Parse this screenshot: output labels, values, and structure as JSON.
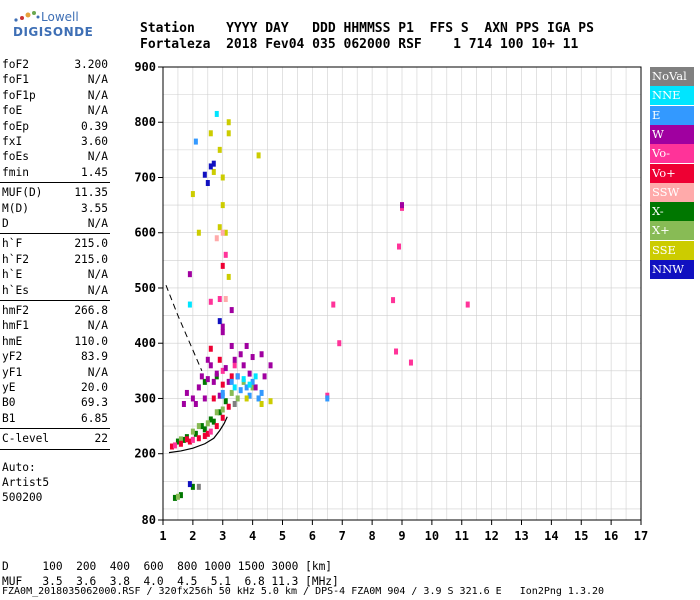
{
  "logo": {
    "line1": "Lowell",
    "line2": "DIGISONDE"
  },
  "header": {
    "line1": "Station    YYYY DAY   DDD HHMMSS P1  FFS S  AXN PPS IGA PS",
    "line2": "Fortaleza  2018 Fev04 035 062000 RSF    1 714 100 10+ 11"
  },
  "params": [
    {
      "key": "foF2",
      "value": "3.200"
    },
    {
      "key": "foF1",
      "value": "N/A"
    },
    {
      "key": "foF1p",
      "value": "N/A"
    },
    {
      "key": "foE",
      "value": "N/A"
    },
    {
      "key": "foEp",
      "value": "0.39"
    },
    {
      "key": "fxI",
      "value": "3.60"
    },
    {
      "key": "foEs",
      "value": "N/A"
    },
    {
      "key": "fmin",
      "value": "1.45"
    },
    {
      "key": "MUF(D)",
      "value": "11.35"
    },
    {
      "key": "M(D)",
      "value": "3.55"
    },
    {
      "key": "D",
      "value": "N/A"
    },
    {
      "key": "h`F",
      "value": "215.0"
    },
    {
      "key": "h`F2",
      "value": "215.0"
    },
    {
      "key": "h`E",
      "value": "N/A"
    },
    {
      "key": "h`Es",
      "value": "N/A"
    },
    {
      "key": "hmF2",
      "value": "266.8"
    },
    {
      "key": "hmF1",
      "value": "N/A"
    },
    {
      "key": "hmE",
      "value": "110.0"
    },
    {
      "key": "yF2",
      "value": "83.9"
    },
    {
      "key": "yF1",
      "value": "N/A"
    },
    {
      "key": "yE",
      "value": "20.0"
    },
    {
      "key": "B0",
      "value": "69.3"
    },
    {
      "key": "B1",
      "value": "6.85"
    },
    {
      "key": "C-level",
      "value": "22"
    }
  ],
  "auto": {
    "line1": "Auto:",
    "line2": "Artist5",
    "line3": "500200"
  },
  "legend": [
    {
      "label": "NoVal",
      "color": "#808080"
    },
    {
      "label": "NNE",
      "color": "#00e5ff"
    },
    {
      "label": "E",
      "color": "#3399ff"
    },
    {
      "label": "W",
      "color": "#a000a0"
    },
    {
      "label": "Vo-",
      "color": "#ff3399"
    },
    {
      "label": "Vo+",
      "color": "#ee0033"
    },
    {
      "label": "SSW",
      "color": "#ffaaaa"
    },
    {
      "label": "X-",
      "color": "#007700"
    },
    {
      "label": "X+",
      "color": "#88bb55"
    },
    {
      "label": "SSE",
      "color": "#cccc00"
    },
    {
      "label": "NNW",
      "color": "#1010c0"
    }
  ],
  "bottom": {
    "line1": "D     100  200  400  600  800 1000 1500 3000 [km]",
    "line2": "MUF   3.5  3.6  3.8  4.0  4.5  5.1  6.8 11.3 [MHz]"
  },
  "status": "FZA0M_2018035062000.RSF / 320fx256h 50 kHz 5.0 km / DPS-4 FZA0M 904 / 3.9 S 321.6 E   Ion2Png 1.3.20",
  "chart_data": {
    "type": "scatter",
    "xlim": [
      1,
      17
    ],
    "ylim": [
      80,
      900
    ],
    "x_ticks": [
      1,
      2,
      3,
      4,
      5,
      6,
      7,
      8,
      9,
      10,
      11,
      12,
      13,
      14,
      15,
      16,
      17
    ],
    "y_ticks": [
      80,
      200,
      300,
      400,
      500,
      600,
      700,
      800,
      900
    ],
    "grid": true,
    "series": [
      {
        "name": "X-",
        "color": "#007700",
        "points": [
          [
            1.5,
            222
          ],
          [
            1.8,
            230
          ],
          [
            2.1,
            236
          ],
          [
            2.4,
            244
          ],
          [
            2.7,
            258
          ],
          [
            2.9,
            275
          ],
          [
            3.1,
            295
          ],
          [
            2.3,
            250
          ],
          [
            2.6,
            262
          ],
          [
            1.7,
            225
          ],
          [
            1.4,
            120
          ],
          [
            1.6,
            125
          ],
          [
            2.0,
            140
          ],
          [
            2.4,
            330
          ],
          [
            2.8,
            340
          ]
        ]
      },
      {
        "name": "X+",
        "color": "#88bb55",
        "points": [
          [
            1.6,
            226
          ],
          [
            2.0,
            240
          ],
          [
            2.5,
            255
          ],
          [
            3.0,
            280
          ],
          [
            3.3,
            310
          ],
          [
            3.7,
            330
          ],
          [
            4.0,
            320
          ],
          [
            2.2,
            250
          ],
          [
            2.8,
            275
          ],
          [
            3.5,
            300
          ],
          [
            1.5,
            122
          ],
          [
            4.2,
            300
          ]
        ]
      },
      {
        "name": "Vo+",
        "color": "#ee0033",
        "points": [
          [
            1.3,
            213
          ],
          [
            1.6,
            218
          ],
          [
            1.9,
            222
          ],
          [
            2.2,
            228
          ],
          [
            2.5,
            236
          ],
          [
            2.8,
            250
          ],
          [
            3.0,
            265
          ],
          [
            3.2,
            285
          ],
          [
            2.7,
            300
          ],
          [
            3.0,
            325
          ],
          [
            3.3,
            340
          ],
          [
            3.0,
            540
          ],
          [
            2.6,
            390
          ],
          [
            2.9,
            370
          ],
          [
            1.8,
            226
          ],
          [
            2.4,
            232
          ]
        ]
      },
      {
        "name": "Vo-",
        "color": "#ff3399",
        "points": [
          [
            1.4,
            215
          ],
          [
            2.0,
            225
          ],
          [
            2.6,
            240
          ],
          [
            3.0,
            350
          ],
          [
            3.4,
            360
          ],
          [
            2.9,
            480
          ],
          [
            3.1,
            560
          ],
          [
            2.6,
            475
          ],
          [
            6.5,
            305
          ],
          [
            6.9,
            400
          ],
          [
            8.8,
            385
          ],
          [
            8.9,
            575
          ],
          [
            9.0,
            645
          ],
          [
            11.2,
            470
          ],
          [
            9.3,
            365
          ],
          [
            8.7,
            478
          ],
          [
            6.7,
            470
          ]
        ]
      },
      {
        "name": "W",
        "color": "#a000a0",
        "points": [
          [
            1.8,
            310
          ],
          [
            2.2,
            320
          ],
          [
            2.5,
            335
          ],
          [
            2.8,
            345
          ],
          [
            3.1,
            355
          ],
          [
            3.4,
            370
          ],
          [
            3.7,
            360
          ],
          [
            2.0,
            300
          ],
          [
            2.4,
            300
          ],
          [
            2.7,
            330
          ],
          [
            3.0,
            420
          ],
          [
            3.3,
            395
          ],
          [
            3.6,
            380
          ],
          [
            4.0,
            375
          ],
          [
            4.3,
            380
          ],
          [
            4.6,
            360
          ],
          [
            3.5,
            340
          ],
          [
            2.9,
            305
          ],
          [
            2.3,
            340
          ],
          [
            3.2,
            330
          ],
          [
            3.8,
            395
          ],
          [
            1.7,
            290
          ],
          [
            2.1,
            290
          ],
          [
            4.1,
            320
          ],
          [
            2.6,
            360
          ],
          [
            3.3,
            460
          ],
          [
            3.0,
            430
          ],
          [
            1.9,
            525
          ],
          [
            9.0,
            650
          ],
          [
            4.4,
            340
          ],
          [
            3.9,
            345
          ],
          [
            2.5,
            370
          ]
        ]
      },
      {
        "name": "E",
        "color": "#3399ff",
        "points": [
          [
            3.3,
            330
          ],
          [
            3.6,
            315
          ],
          [
            3.9,
            305
          ],
          [
            4.2,
            300
          ],
          [
            3.8,
            320
          ],
          [
            4.0,
            330
          ],
          [
            3.5,
            340
          ],
          [
            3.0,
            310
          ],
          [
            6.5,
            300
          ],
          [
            2.1,
            765
          ],
          [
            3.0,
            305
          ],
          [
            4.3,
            310
          ]
        ]
      },
      {
        "name": "NNE",
        "color": "#00e5ff",
        "points": [
          [
            3.4,
            320
          ],
          [
            3.7,
            335
          ],
          [
            4.1,
            340
          ],
          [
            1.9,
            470
          ],
          [
            2.8,
            815
          ],
          [
            3.9,
            325
          ]
        ]
      },
      {
        "name": "SSE",
        "color": "#cccc00",
        "points": [
          [
            2.9,
            750
          ],
          [
            3.0,
            700
          ],
          [
            3.2,
            780
          ],
          [
            2.7,
            710
          ],
          [
            3.1,
            600
          ],
          [
            3.2,
            520
          ],
          [
            2.9,
            610
          ],
          [
            4.3,
            290
          ],
          [
            3.0,
            650
          ],
          [
            2.6,
            780
          ],
          [
            4.2,
            740
          ],
          [
            3.8,
            300
          ],
          [
            3.2,
            800
          ],
          [
            4.6,
            295
          ],
          [
            2.0,
            670
          ],
          [
            2.2,
            600
          ]
        ]
      },
      {
        "name": "NNW",
        "color": "#1010c0",
        "points": [
          [
            2.4,
            705
          ],
          [
            2.6,
            720
          ],
          [
            2.9,
            440
          ],
          [
            1.9,
            145
          ],
          [
            2.5,
            690
          ],
          [
            2.7,
            725
          ]
        ]
      },
      {
        "name": "SSW",
        "color": "#ffaaaa",
        "points": [
          [
            3.1,
            480
          ],
          [
            3.0,
            600
          ],
          [
            2.8,
            590
          ]
        ]
      },
      {
        "name": "NoVal",
        "color": "#808080",
        "points": [
          [
            2.2,
            140
          ],
          [
            3.4,
            290
          ]
        ]
      }
    ],
    "profile": [
      [
        1.2,
        202
      ],
      [
        1.6,
        205
      ],
      [
        2.0,
        210
      ],
      [
        2.4,
        218
      ],
      [
        2.7,
        228
      ],
      [
        2.9,
        242
      ],
      [
        3.05,
        255
      ],
      [
        3.15,
        267
      ]
    ],
    "dashed_trace": [
      [
        1.1,
        505
      ],
      [
        1.5,
        450
      ],
      [
        1.9,
        400
      ],
      [
        2.3,
        350
      ]
    ]
  }
}
